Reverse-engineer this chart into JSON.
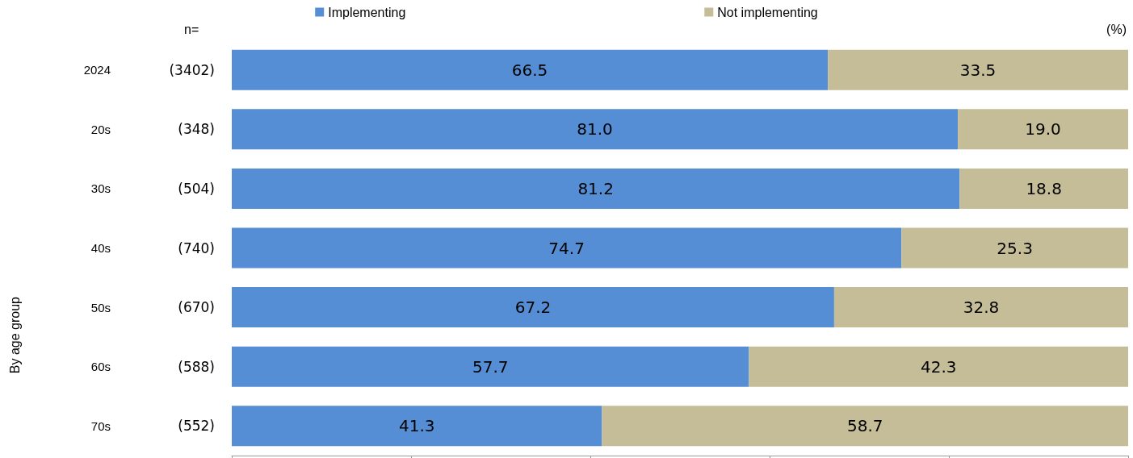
{
  "chart_data": {
    "type": "bar",
    "orientation": "horizontal",
    "stacked": true,
    "categories": [
      "2024",
      "20s",
      "30s",
      "40s",
      "50s",
      "60s",
      "70s"
    ],
    "series": [
      {
        "name": "Implementing",
        "color": "#558ed5",
        "values": [
          66.5,
          81.0,
          81.2,
          74.7,
          67.2,
          57.7,
          41.3
        ],
        "value_labels": [
          "66.5",
          "81.0",
          "81.2",
          "74.7",
          "67.2",
          "57.7",
          "41.3"
        ]
      },
      {
        "name": "Not implementing",
        "color": "#c4bd97",
        "values": [
          33.5,
          19.0,
          18.8,
          25.3,
          32.8,
          42.3,
          58.7
        ],
        "value_labels": [
          "33.5",
          "19.0",
          "18.8",
          "25.3",
          "32.8",
          "42.3",
          "58.7"
        ]
      }
    ],
    "tick_labels": "y",
    "grid": false,
    "legend": "top",
    "annotations": [
      "n=",
      "(%)",
      "By age group",
      "(3402)",
      "(348)",
      "(504)",
      "(740)",
      "(670)",
      "(588)",
      "(552)"
    ]
  }
}
